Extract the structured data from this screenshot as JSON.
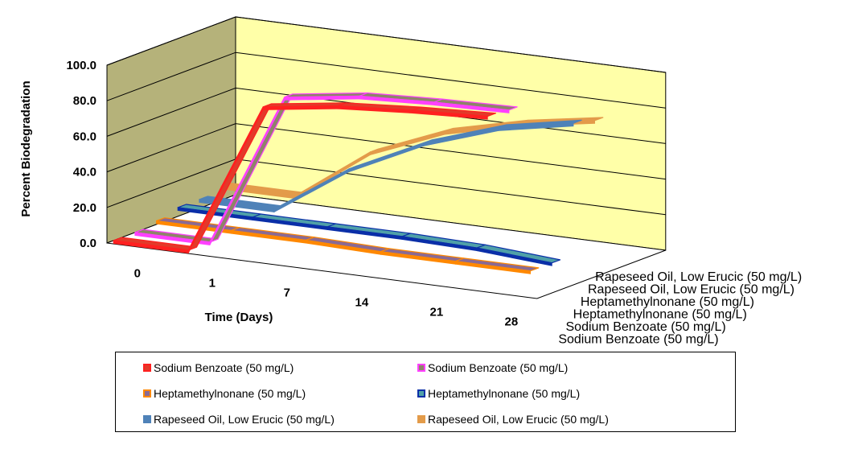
{
  "chart_data": {
    "type": "line",
    "style": "3d-ribbon",
    "ylabel": "Percent Biodegradation",
    "xlabel": "Time (Days)",
    "categories": [
      "0",
      "1",
      "7",
      "14",
      "21",
      "28"
    ],
    "y_ticks": [
      "0.0",
      "20.0",
      "40.0",
      "60.0",
      "80.0",
      "100.0"
    ],
    "ylim": [
      0,
      100
    ],
    "grid": true,
    "wall_color": "#ffffa8",
    "side_wall_color": "#b5b27a",
    "legend_position": "bottom",
    "series": [
      {
        "name": "Sodium Benzoate (50 mg/L)",
        "values": [
          0,
          0,
          86,
          92,
          95,
          97
        ],
        "fill": "#e23a2a",
        "edge": "#ff2020"
      },
      {
        "name": "Sodium Benzoate (50 mg/L)",
        "values": [
          0,
          0,
          87,
          93,
          95,
          96
        ],
        "fill": "#8e8468",
        "edge": "#ff40ff"
      },
      {
        "name": "Heptamethylnonane (50 mg/L)",
        "values": [
          2,
          2,
          2,
          1,
          1,
          1
        ],
        "fill": "#8a6a94",
        "edge": "#ff8800"
      },
      {
        "name": "Heptamethylnonane (50 mg/L)",
        "values": [
          5,
          5,
          5,
          5,
          4,
          1
        ],
        "fill": "#4fa0a8",
        "edge": "#0a2fa8"
      },
      {
        "name": "Rapeseed Oil, Low Erucic (50 mg/L)",
        "values": [
          5,
          5,
          33,
          53,
          67,
          75
        ],
        "fill": "#4f82b8",
        "edge": "#4f82b8"
      },
      {
        "name": "Rapeseed Oil, Low Erucic (50 mg/L)",
        "values": [
          8,
          8,
          38,
          55,
          65,
          72
        ],
        "fill": "#e39b4a",
        "edge": "#e39b4a"
      }
    ],
    "depth_labels": [
      "Sodium Benzoate (50 mg/L)",
      "Sodium Benzoate (50 mg/L)",
      "Heptamethylnonane (50 mg/L)",
      "Heptamethylnonane (50 mg/L)",
      "Rapeseed Oil, Low Erucic (50 mg/L)",
      "Rapeseed Oil, Low Erucic (50 mg/L)"
    ]
  }
}
